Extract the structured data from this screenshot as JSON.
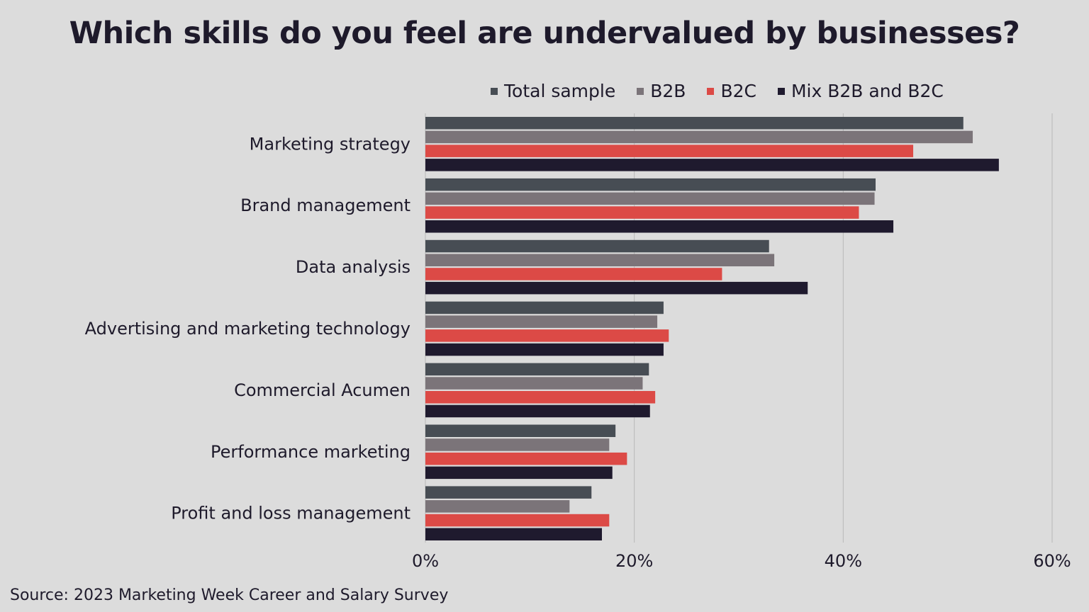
{
  "chart_data": {
    "type": "bar",
    "orientation": "horizontal",
    "title": "Which skills do you feel are undervalued by businesses?",
    "categories": [
      "Marketing strategy",
      "Brand management",
      "Data analysis",
      "Advertising and marketing technology",
      "Commercial Acumen",
      "Performance marketing",
      "Profit and loss management"
    ],
    "series": [
      {
        "name": "Total sample",
        "color": "#474d54",
        "values": [
          51.5,
          43.1,
          32.9,
          22.8,
          21.4,
          18.2,
          15.9
        ]
      },
      {
        "name": "B2B",
        "color": "#7b7479",
        "values": [
          52.4,
          43.0,
          33.4,
          22.2,
          20.8,
          17.6,
          13.8
        ]
      },
      {
        "name": "B2C",
        "color": "#dc4a46",
        "values": [
          46.7,
          41.5,
          28.4,
          23.3,
          22.0,
          19.3,
          17.6
        ]
      },
      {
        "name": "Mix B2B and B2C",
        "color": "#1f1a2e",
        "values": [
          54.9,
          44.8,
          36.6,
          22.8,
          21.5,
          17.9,
          16.9
        ]
      }
    ],
    "xlim": [
      0,
      60
    ],
    "xticks": [
      0,
      20,
      40,
      60
    ],
    "xtick_labels": [
      "0%",
      "20%",
      "40%",
      "60%"
    ],
    "grid": true,
    "legend_position": "top-right",
    "xlabel": "",
    "ylabel": ""
  },
  "source": "Source: 2023 Marketing Week Career and Salary Survey"
}
